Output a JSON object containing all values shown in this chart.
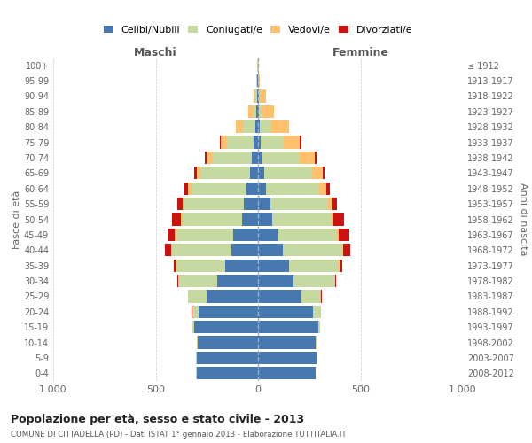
{
  "age_groups": [
    "0-4",
    "5-9",
    "10-14",
    "15-19",
    "20-24",
    "25-29",
    "30-34",
    "35-39",
    "40-44",
    "45-49",
    "50-54",
    "55-59",
    "60-64",
    "65-69",
    "70-74",
    "75-79",
    "80-84",
    "85-89",
    "90-94",
    "95-99",
    "100+"
  ],
  "birth_years": [
    "2008-2012",
    "2003-2007",
    "1998-2002",
    "1993-1997",
    "1988-1992",
    "1983-1987",
    "1978-1982",
    "1973-1977",
    "1968-1972",
    "1963-1967",
    "1958-1962",
    "1953-1957",
    "1948-1952",
    "1943-1947",
    "1938-1942",
    "1933-1937",
    "1928-1932",
    "1923-1927",
    "1918-1922",
    "1913-1917",
    "≤ 1912"
  ],
  "colors": {
    "celibi": "#4878b0",
    "coniugati": "#c5d9a0",
    "vedovi": "#ffc06e",
    "divorziati": "#cc1111"
  },
  "legend_labels": [
    "Celibi/Nubili",
    "Coniugati/e",
    "Vedovi/e",
    "Divorziati/e"
  ],
  "maschi": {
    "celibi": [
      300,
      300,
      295,
      310,
      290,
      250,
      200,
      160,
      130,
      120,
      80,
      70,
      55,
      40,
      30,
      20,
      15,
      8,
      4,
      3,
      2
    ],
    "coniugati": [
      2,
      3,
      5,
      10,
      30,
      90,
      190,
      240,
      290,
      280,
      290,
      290,
      270,
      240,
      190,
      130,
      60,
      20,
      8,
      2,
      1
    ],
    "vedovi": [
      0,
      0,
      0,
      0,
      1,
      1,
      1,
      2,
      3,
      5,
      8,
      10,
      15,
      20,
      30,
      30,
      35,
      20,
      10,
      3,
      1
    ],
    "divorziati": [
      0,
      0,
      0,
      0,
      2,
      3,
      5,
      10,
      30,
      35,
      40,
      25,
      20,
      10,
      10,
      5,
      0,
      0,
      0,
      0,
      0
    ]
  },
  "femmine": {
    "nubili": [
      280,
      285,
      280,
      295,
      270,
      210,
      175,
      150,
      120,
      100,
      70,
      60,
      40,
      30,
      20,
      15,
      10,
      5,
      3,
      2,
      2
    ],
    "coniugate": [
      2,
      3,
      5,
      10,
      35,
      95,
      200,
      245,
      290,
      285,
      285,
      280,
      260,
      235,
      185,
      110,
      50,
      15,
      5,
      2,
      1
    ],
    "vedove": [
      0,
      0,
      0,
      0,
      1,
      2,
      2,
      3,
      5,
      10,
      15,
      25,
      35,
      50,
      70,
      80,
      90,
      60,
      30,
      5,
      2
    ],
    "divorziate": [
      0,
      0,
      0,
      0,
      2,
      3,
      5,
      15,
      35,
      50,
      50,
      20,
      15,
      8,
      10,
      5,
      2,
      0,
      0,
      0,
      0
    ]
  },
  "xlim": 1000,
  "title": "Popolazione per età, sesso e stato civile - 2013",
  "subtitle": "COMUNE DI CITTADELLA (PD) - Dati ISTAT 1° gennaio 2013 - Elaborazione TUTTITALIA.IT",
  "xlabel_left": "Maschi",
  "xlabel_right": "Femmine",
  "ylabel_left": "Fasce di età",
  "ylabel_right": "Anni di nascita",
  "xtick_labels": [
    "1.000",
    "500",
    "0",
    "500",
    "1.000"
  ]
}
